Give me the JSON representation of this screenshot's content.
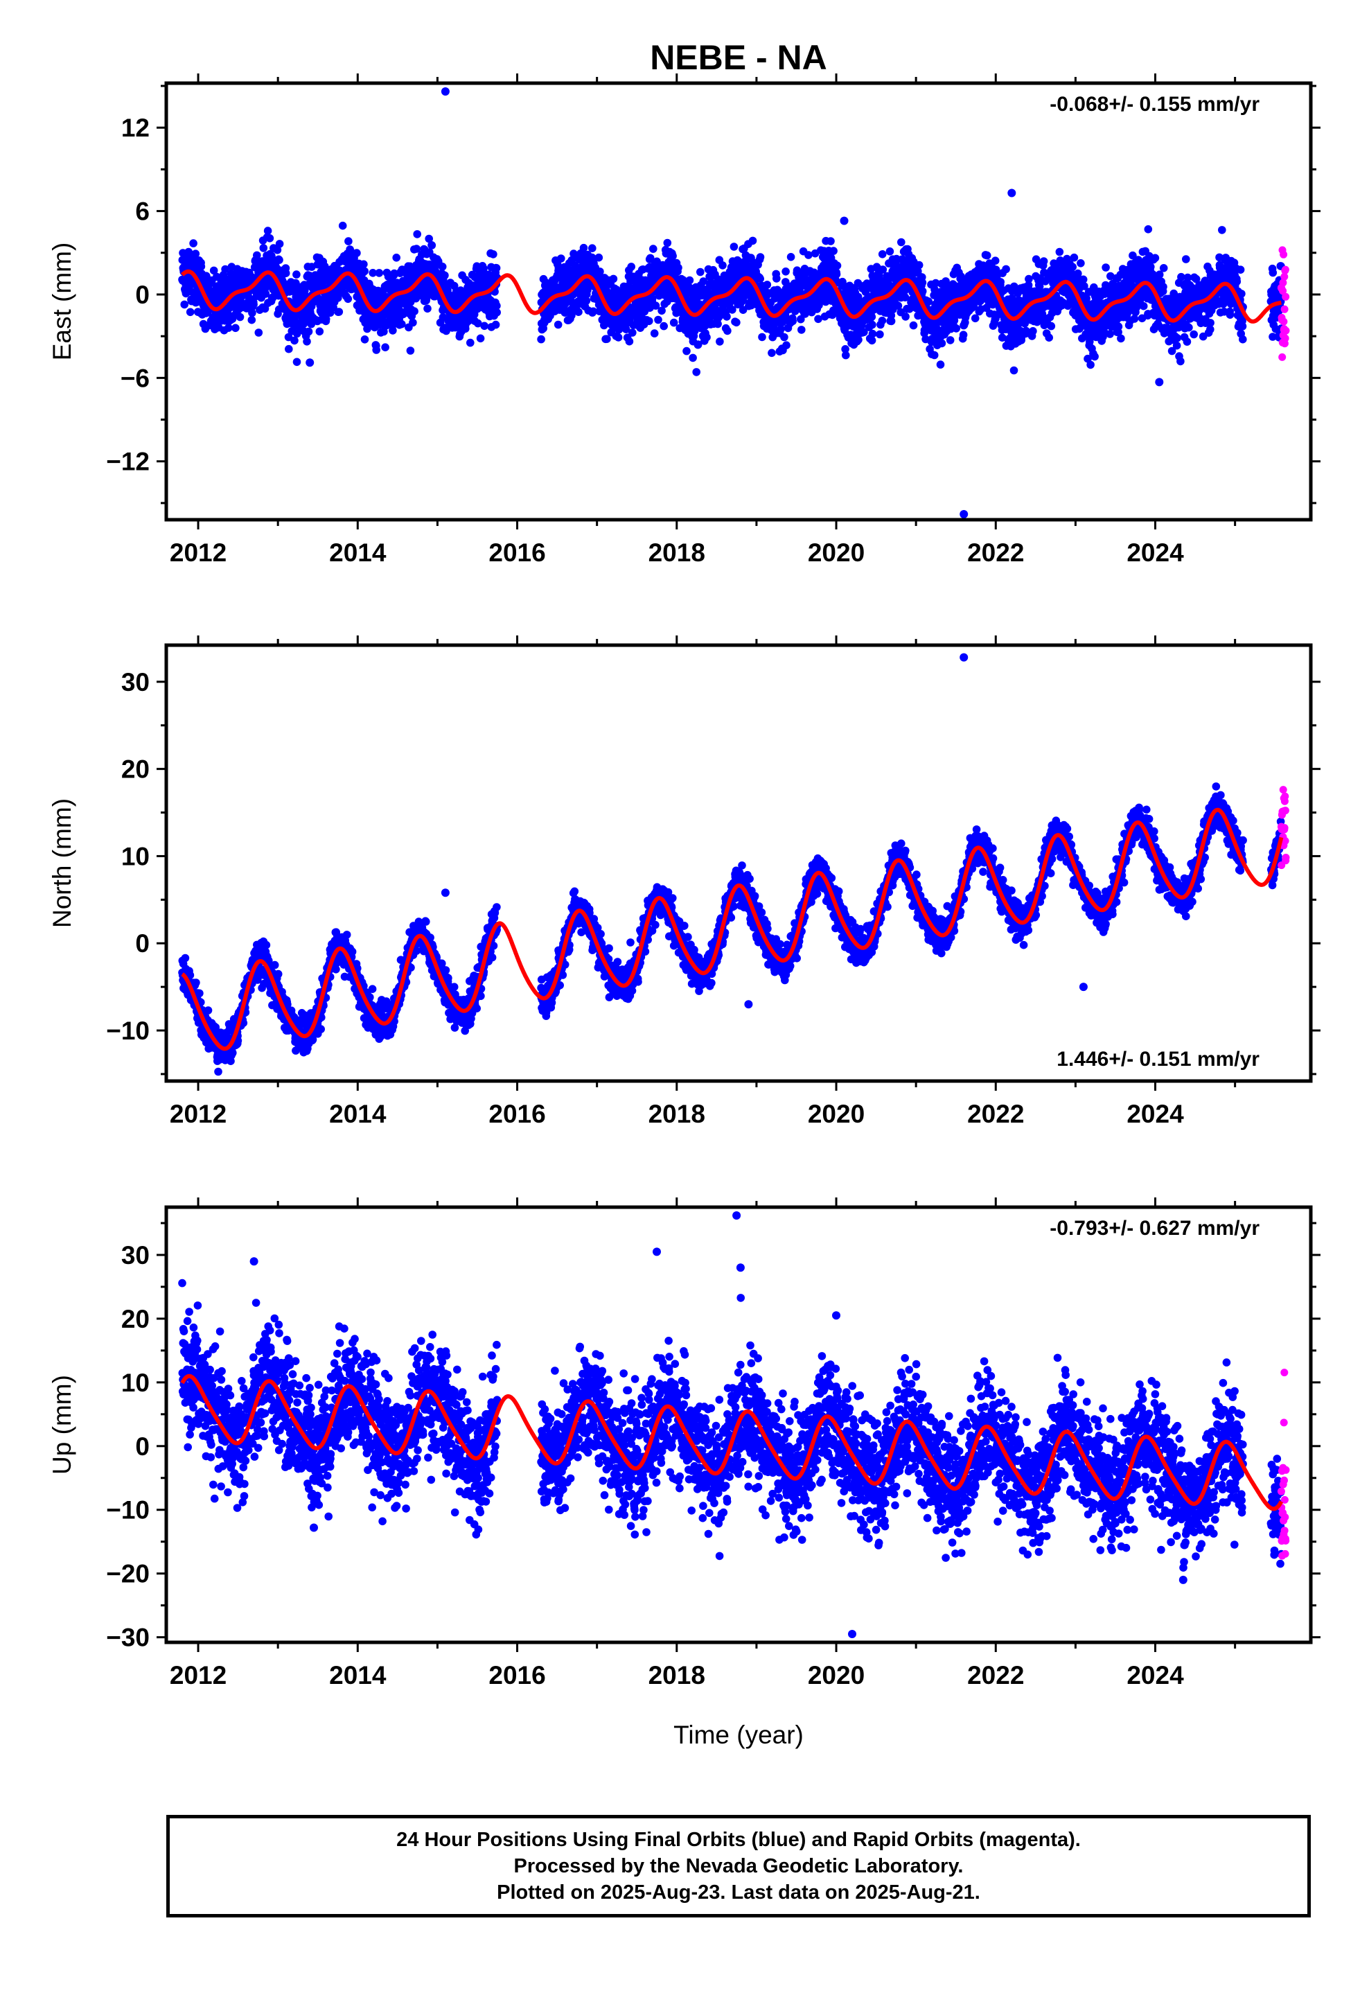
{
  "title": "NEBE - NA",
  "xlabel": "Time (year)",
  "colors": {
    "final": "#0000ff",
    "rapid": "#ff00ff",
    "model": "#ff0000",
    "axes": "#000000"
  },
  "caption": [
    "24 Hour Positions Using Final Orbits (blue) and Rapid Orbits (magenta).",
    "Processed by the Nevada Geodetic Laboratory.",
    "Plotted on 2025-Aug-23. Last data on 2025-Aug-21."
  ],
  "chart_data": [
    {
      "type": "scatter",
      "ylabel": "East (mm)",
      "rate_text": "-0.068+/- 0.155 mm/yr",
      "rate_position": "top-right",
      "xlim": [
        2011.6,
        2025.95
      ],
      "ylim": [
        -16.2,
        15.2
      ],
      "x_ticks": [
        2012,
        2014,
        2016,
        2018,
        2020,
        2022,
        2024
      ],
      "y_ticks": [
        -12,
        -6,
        0,
        6,
        12
      ],
      "model": {
        "name": "model",
        "rate": -0.068,
        "annual_amp": 1.1,
        "annual_phase": 0.55,
        "semiannual_amp": 0.45,
        "semiannual_phase": 0.3,
        "offset_2012": 0.3
      },
      "series": [
        {
          "name": "final",
          "noise": 1.1,
          "segments": [
            [
              2011.8,
              2015.75
            ],
            [
              2016.3,
              2025.1
            ],
            [
              2025.45,
              2025.58
            ]
          ]
        },
        {
          "name": "rapid",
          "noise": 2.0,
          "segments": [
            [
              2025.58,
              2025.64
            ]
          ]
        }
      ],
      "outliers": [
        [
          2015.1,
          14.6
        ],
        [
          2021.6,
          -15.8
        ],
        [
          2022.2,
          7.3
        ],
        [
          2020.1,
          5.3
        ],
        [
          2013.4,
          -4.9
        ],
        [
          2024.05,
          -6.3
        ]
      ]
    },
    {
      "type": "scatter",
      "ylabel": "North (mm)",
      "rate_text": "1.446+/- 0.151 mm/yr",
      "rate_position": "bottom-right",
      "xlim": [
        2011.6,
        2025.95
      ],
      "ylim": [
        -15.8,
        34.2
      ],
      "x_ticks": [
        2012,
        2014,
        2016,
        2018,
        2020,
        2022,
        2024
      ],
      "y_ticks": [
        -10,
        0,
        10,
        20,
        30
      ],
      "model": {
        "name": "model",
        "rate": 1.446,
        "annual_amp": 4.6,
        "annual_phase": 0.55,
        "semiannual_amp": 0.6,
        "semiannual_phase": 0.1,
        "offset_2012": -8.2
      },
      "series": [
        {
          "name": "final",
          "noise": 1.0,
          "segments": [
            [
              2011.8,
              2015.75
            ],
            [
              2016.3,
              2025.1
            ],
            [
              2025.45,
              2025.58
            ]
          ]
        },
        {
          "name": "rapid",
          "noise": 2.2,
          "segments": [
            [
              2025.58,
              2025.64
            ]
          ]
        }
      ],
      "outliers": [
        [
          2021.6,
          32.8
        ],
        [
          2015.1,
          5.8
        ],
        [
          2023.1,
          -5.0
        ],
        [
          2018.9,
          -7.0
        ]
      ]
    },
    {
      "type": "scatter",
      "ylabel": "Up (mm)",
      "rate_text": "-0.793+/- 0.627 mm/yr",
      "rate_position": "top-right",
      "xlim": [
        2011.6,
        2025.95
      ],
      "ylim": [
        -30.8,
        37.5
      ],
      "x_ticks": [
        2012,
        2014,
        2016,
        2018,
        2020,
        2022,
        2024
      ],
      "y_ticks": [
        -30,
        -20,
        -10,
        0,
        10,
        20,
        30
      ],
      "model": {
        "name": "model",
        "rate": -0.793,
        "annual_amp": 4.8,
        "annual_phase": 0.68,
        "semiannual_amp": 0.8,
        "semiannual_phase": 0.2,
        "offset_2012": 5.7
      },
      "series": [
        {
          "name": "final",
          "noise": 4.4,
          "segments": [
            [
              2011.8,
              2015.75
            ],
            [
              2016.3,
              2025.1
            ],
            [
              2025.45,
              2025.58
            ]
          ]
        },
        {
          "name": "rapid",
          "noise": 7.0,
          "segments": [
            [
              2025.58,
              2025.64
            ]
          ]
        }
      ],
      "outliers": [
        [
          2018.75,
          36.2
        ],
        [
          2018.8,
          28.0
        ],
        [
          2017.75,
          30.5
        ],
        [
          2020.2,
          -29.5
        ],
        [
          2013.45,
          -12.8
        ],
        [
          2024.35,
          -21.0
        ],
        [
          2012.7,
          29.0
        ],
        [
          2020.0,
          20.5
        ]
      ]
    }
  ]
}
